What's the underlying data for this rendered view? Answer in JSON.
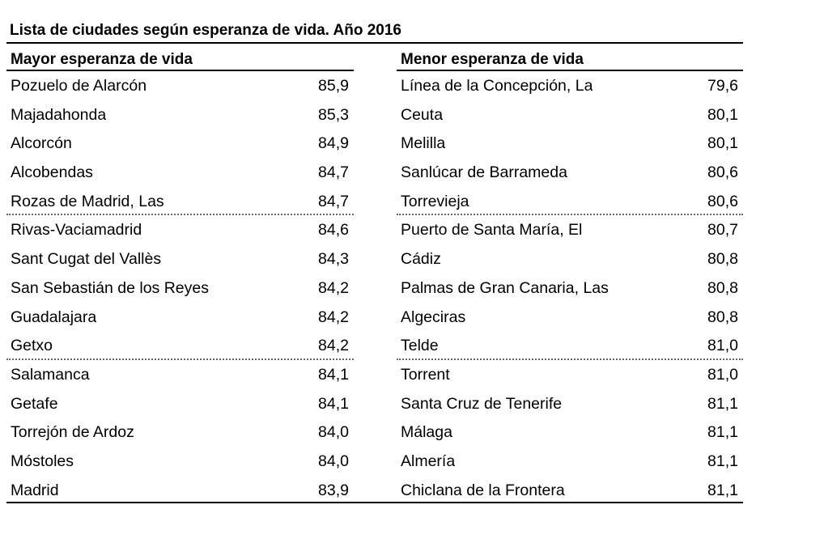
{
  "title": "Lista de ciudades según esperanza de vida. Año 2016",
  "left": {
    "header": "Mayor esperanza de vida",
    "rows": [
      {
        "name": "Pozuelo de Alarcón",
        "value": "85,9"
      },
      {
        "name": "Majadahonda",
        "value": "85,3"
      },
      {
        "name": "Alcorcón",
        "value": "84,9"
      },
      {
        "name": "Alcobendas",
        "value": "84,7"
      },
      {
        "name": "Rozas de Madrid, Las",
        "value": "84,7"
      },
      {
        "name": "Rivas-Vaciamadrid",
        "value": "84,6"
      },
      {
        "name": "Sant Cugat del Vallès",
        "value": "84,3"
      },
      {
        "name": "San Sebastián de los Reyes",
        "value": "84,2"
      },
      {
        "name": "Guadalajara",
        "value": "84,2"
      },
      {
        "name": "Getxo",
        "value": "84,2"
      },
      {
        "name": "Salamanca",
        "value": "84,1"
      },
      {
        "name": "Getafe",
        "value": "84,1"
      },
      {
        "name": "Torrejón de Ardoz",
        "value": "84,0"
      },
      {
        "name": "Móstoles",
        "value": "84,0"
      },
      {
        "name": "Madrid",
        "value": "83,9"
      }
    ]
  },
  "right": {
    "header": "Menor esperanza de vida",
    "rows": [
      {
        "name": "Línea de la Concepción, La",
        "value": "79,6"
      },
      {
        "name": "Ceuta",
        "value": "80,1"
      },
      {
        "name": "Melilla",
        "value": "80,1"
      },
      {
        "name": "Sanlúcar de Barrameda",
        "value": "80,6"
      },
      {
        "name": "Torrevieja",
        "value": "80,6"
      },
      {
        "name": "Puerto de Santa María, El",
        "value": "80,7"
      },
      {
        "name": "Cádiz",
        "value": "80,8"
      },
      {
        "name": "Palmas de Gran Canaria, Las",
        "value": "80,8"
      },
      {
        "name": "Algeciras",
        "value": "80,8"
      },
      {
        "name": "Telde",
        "value": "81,0"
      },
      {
        "name": "Torrent",
        "value": "81,0"
      },
      {
        "name": "Santa Cruz de Tenerife",
        "value": "81,1"
      },
      {
        "name": "Málaga",
        "value": "81,1"
      },
      {
        "name": "Almería",
        "value": "81,1"
      },
      {
        "name": "Chiclana de la Frontera",
        "value": "81,1"
      }
    ]
  }
}
